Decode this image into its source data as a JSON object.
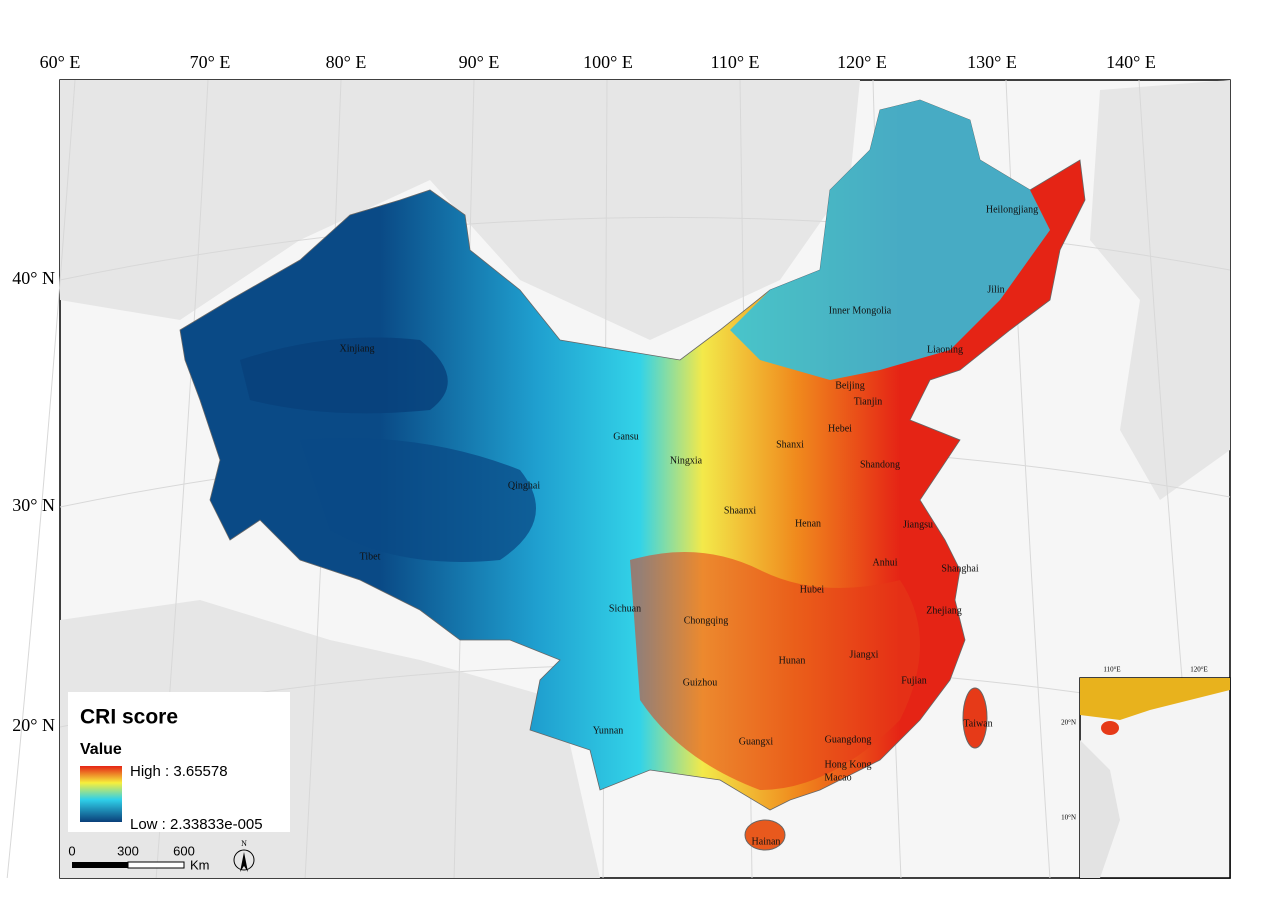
{
  "map": {
    "longitude_labels": [
      "60° E",
      "70° E",
      "80° E",
      "90° E",
      "100° E",
      "110° E",
      "120° E",
      "130° E",
      "140° E"
    ],
    "latitude_labels": [
      "40° N",
      "30° N",
      "20° N"
    ],
    "regions": [
      "Heilongjiang",
      "Jilin",
      "Inner Mongolia",
      "Liaoning",
      "Beijing",
      "Tianjin",
      "Hebei",
      "Shanxi",
      "Shandong",
      "Gansu",
      "Ningxia",
      "Xinjiang",
      "Qinghai",
      "Tibet",
      "Shaanxi",
      "Henan",
      "Jiangsu",
      "Anhui",
      "Shanghai",
      "Hubei",
      "Zhejiang",
      "Sichuan",
      "Chongqing",
      "Hunan",
      "Jiangxi",
      "Fujian",
      "Guizhou",
      "Yunnan",
      "Guangxi",
      "Guangdong",
      "Hong Kong",
      "Macao",
      "Taiwan",
      "Hainan"
    ],
    "legend": {
      "title": "CRI score",
      "subtitle": "Value",
      "high": "High : 3.65578",
      "low": "Low : 2.33833e-005"
    },
    "scale_bar": {
      "labels": [
        "0",
        "300",
        "600"
      ],
      "unit": "Km"
    },
    "north_arrow": "N",
    "inset": {
      "longitude_labels": [
        "110°E",
        "120°E"
      ],
      "latitude_labels": [
        "20°N",
        "10°N"
      ]
    }
  }
}
